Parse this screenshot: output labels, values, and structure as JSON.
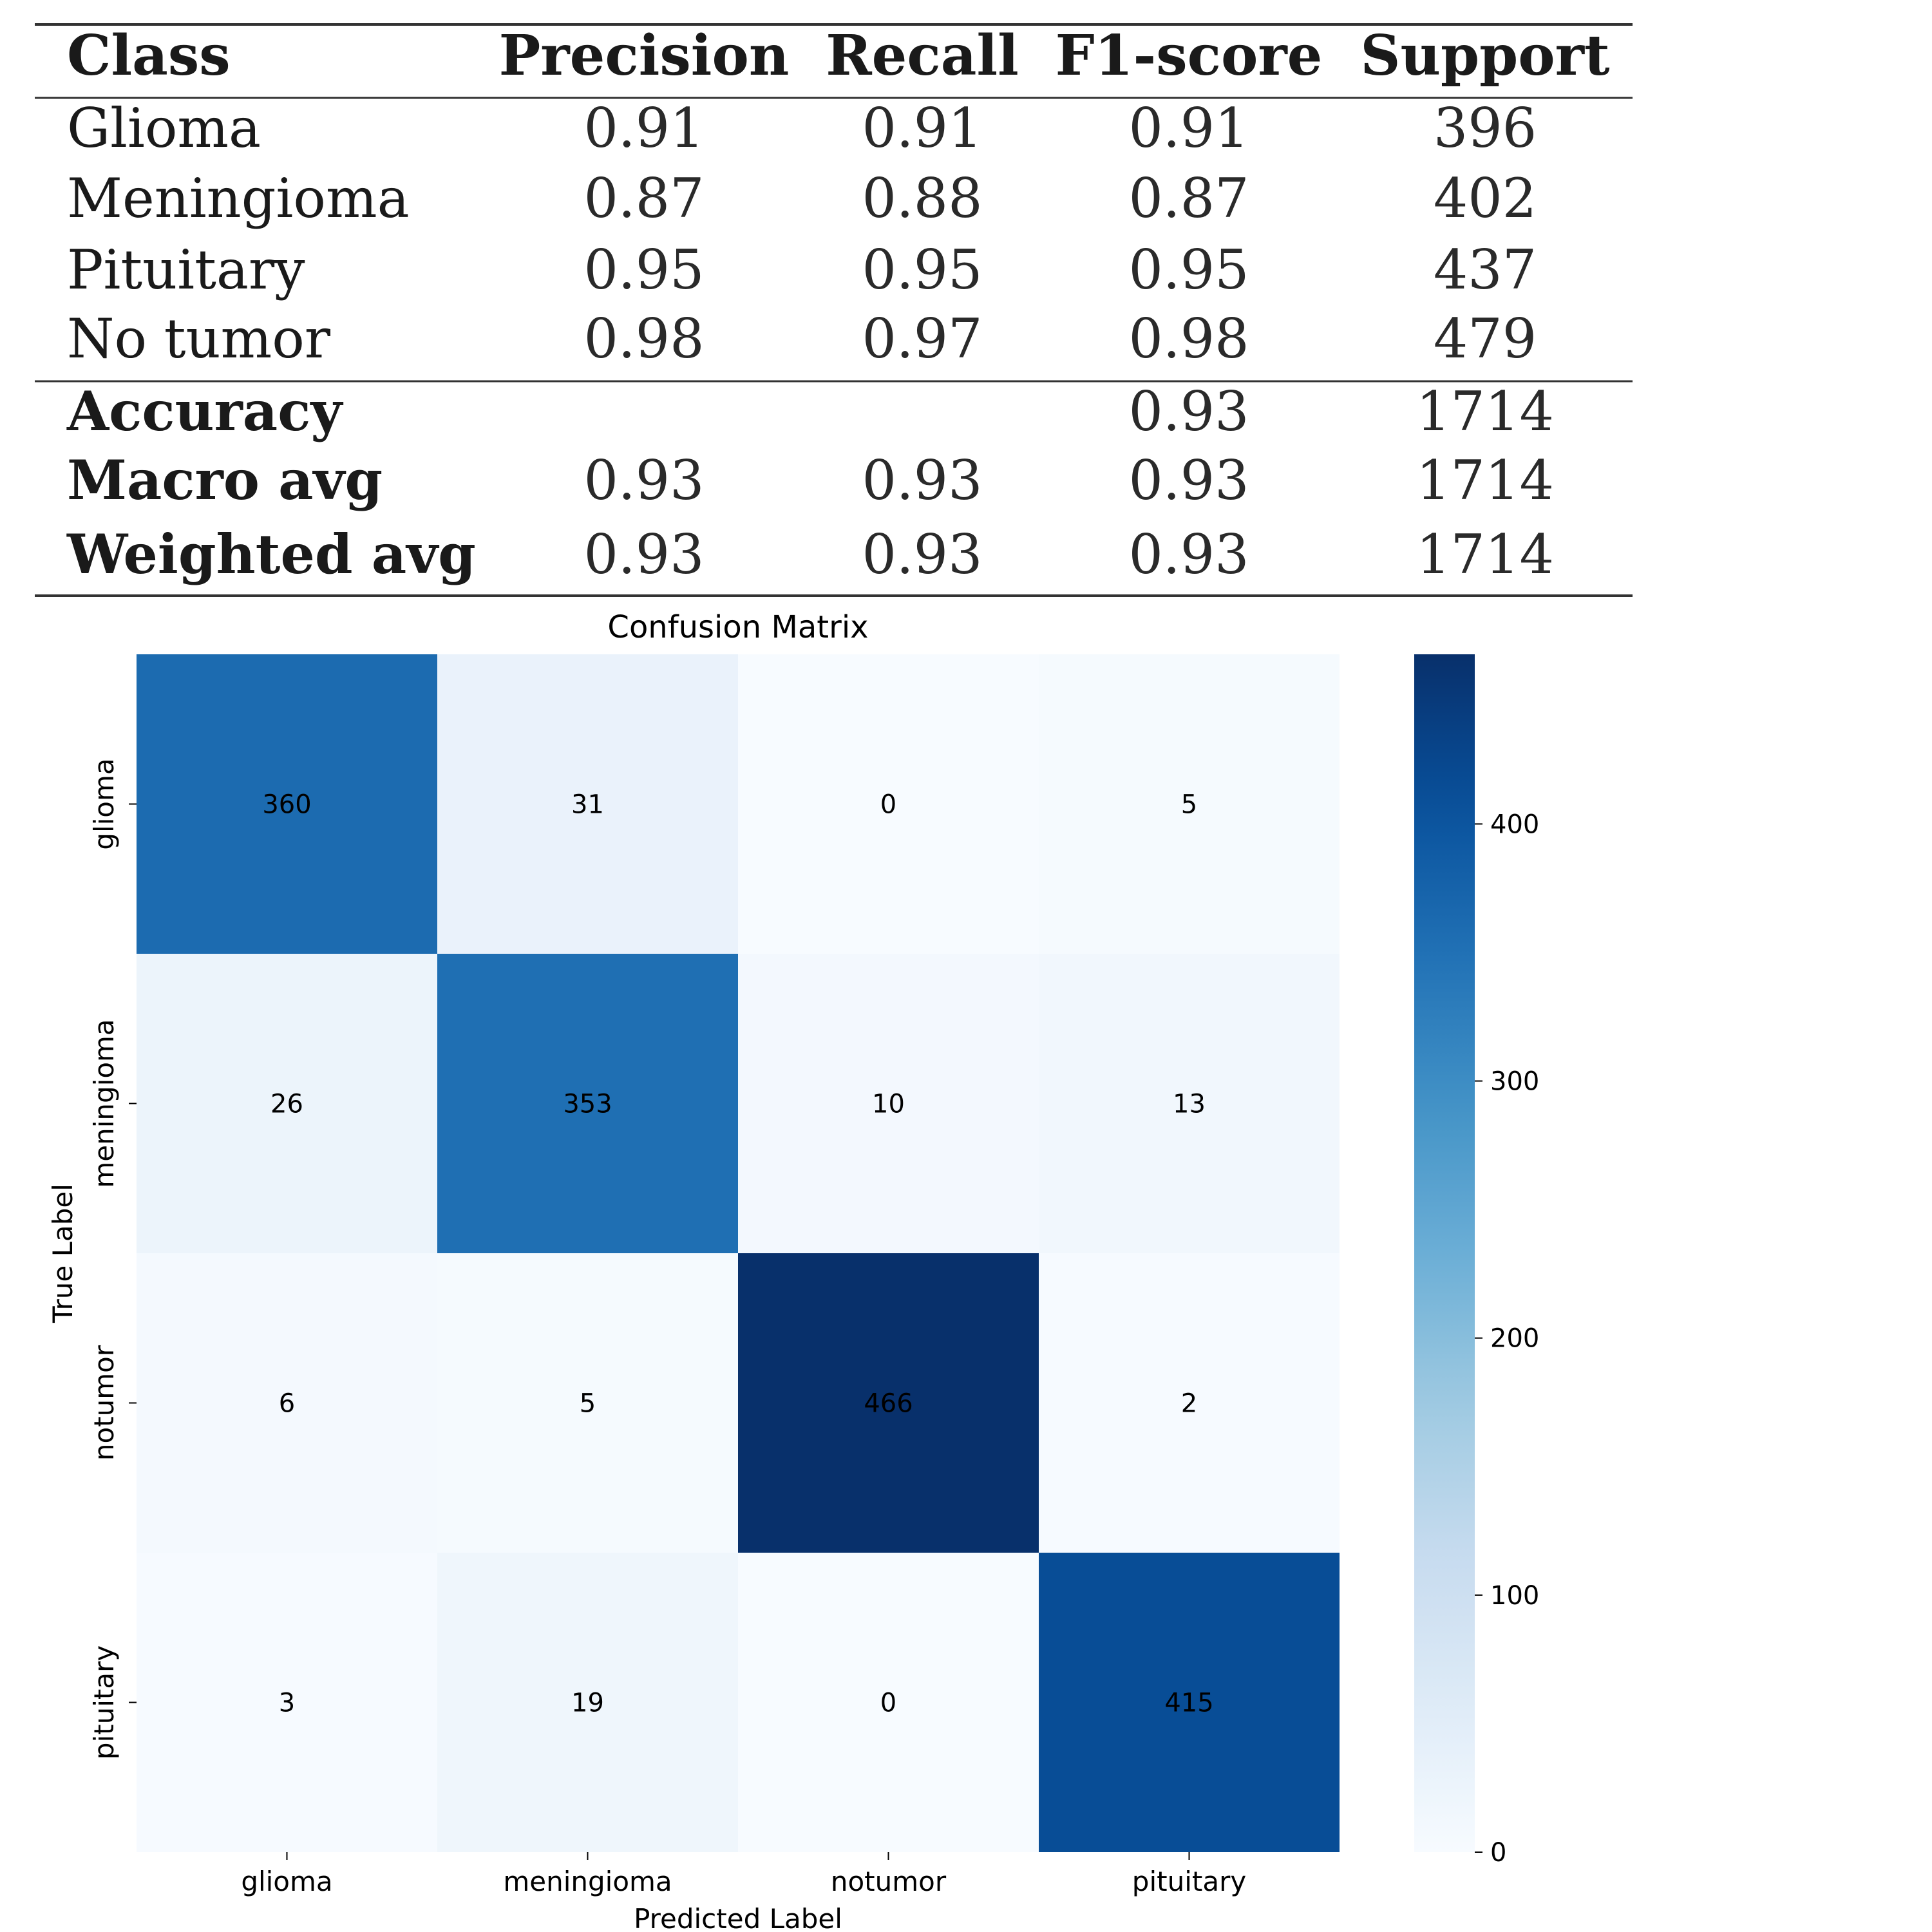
{
  "metrics_table": {
    "columns": [
      "Class",
      "Precision",
      "Recall",
      "F1-score",
      "Support"
    ],
    "rows": [
      {
        "label": "Glioma",
        "precision": "0.91",
        "recall": "0.91",
        "f1": "0.91",
        "support": "396"
      },
      {
        "label": "Meningioma",
        "precision": "0.87",
        "recall": "0.88",
        "f1": "0.87",
        "support": "402"
      },
      {
        "label": "Pituitary",
        "precision": "0.95",
        "recall": "0.95",
        "f1": "0.95",
        "support": "437"
      },
      {
        "label": "No tumor",
        "precision": "0.98",
        "recall": "0.97",
        "f1": "0.98",
        "support": "479"
      }
    ],
    "summary_rows": [
      {
        "label": "Accuracy",
        "precision": "",
        "recall": "",
        "f1": "0.93",
        "support": "1714"
      },
      {
        "label": "Macro avg",
        "precision": "0.93",
        "recall": "0.93",
        "f1": "0.93",
        "support": "1714"
      },
      {
        "label": "Weighted avg",
        "precision": "0.93",
        "recall": "0.93",
        "f1": "0.93",
        "support": "1714"
      }
    ]
  },
  "chart_data": {
    "type": "heatmap",
    "title": "Confusion Matrix",
    "xlabel": "Predicted Label",
    "ylabel": "True Label",
    "x_categories": [
      "glioma",
      "meningioma",
      "notumor",
      "pituitary"
    ],
    "y_categories": [
      "glioma",
      "meningioma",
      "notumor",
      "pituitary"
    ],
    "values": [
      [
        360,
        31,
        0,
        5
      ],
      [
        26,
        353,
        10,
        13
      ],
      [
        6,
        5,
        466,
        2
      ],
      [
        3,
        19,
        0,
        415
      ]
    ],
    "colorbar": {
      "min": 0,
      "max": 466,
      "ticks": [
        0,
        100,
        200,
        300,
        400
      ]
    },
    "colormap": "Blues",
    "colors": {
      "low": "#f7fbff",
      "high": "#08306b"
    }
  }
}
